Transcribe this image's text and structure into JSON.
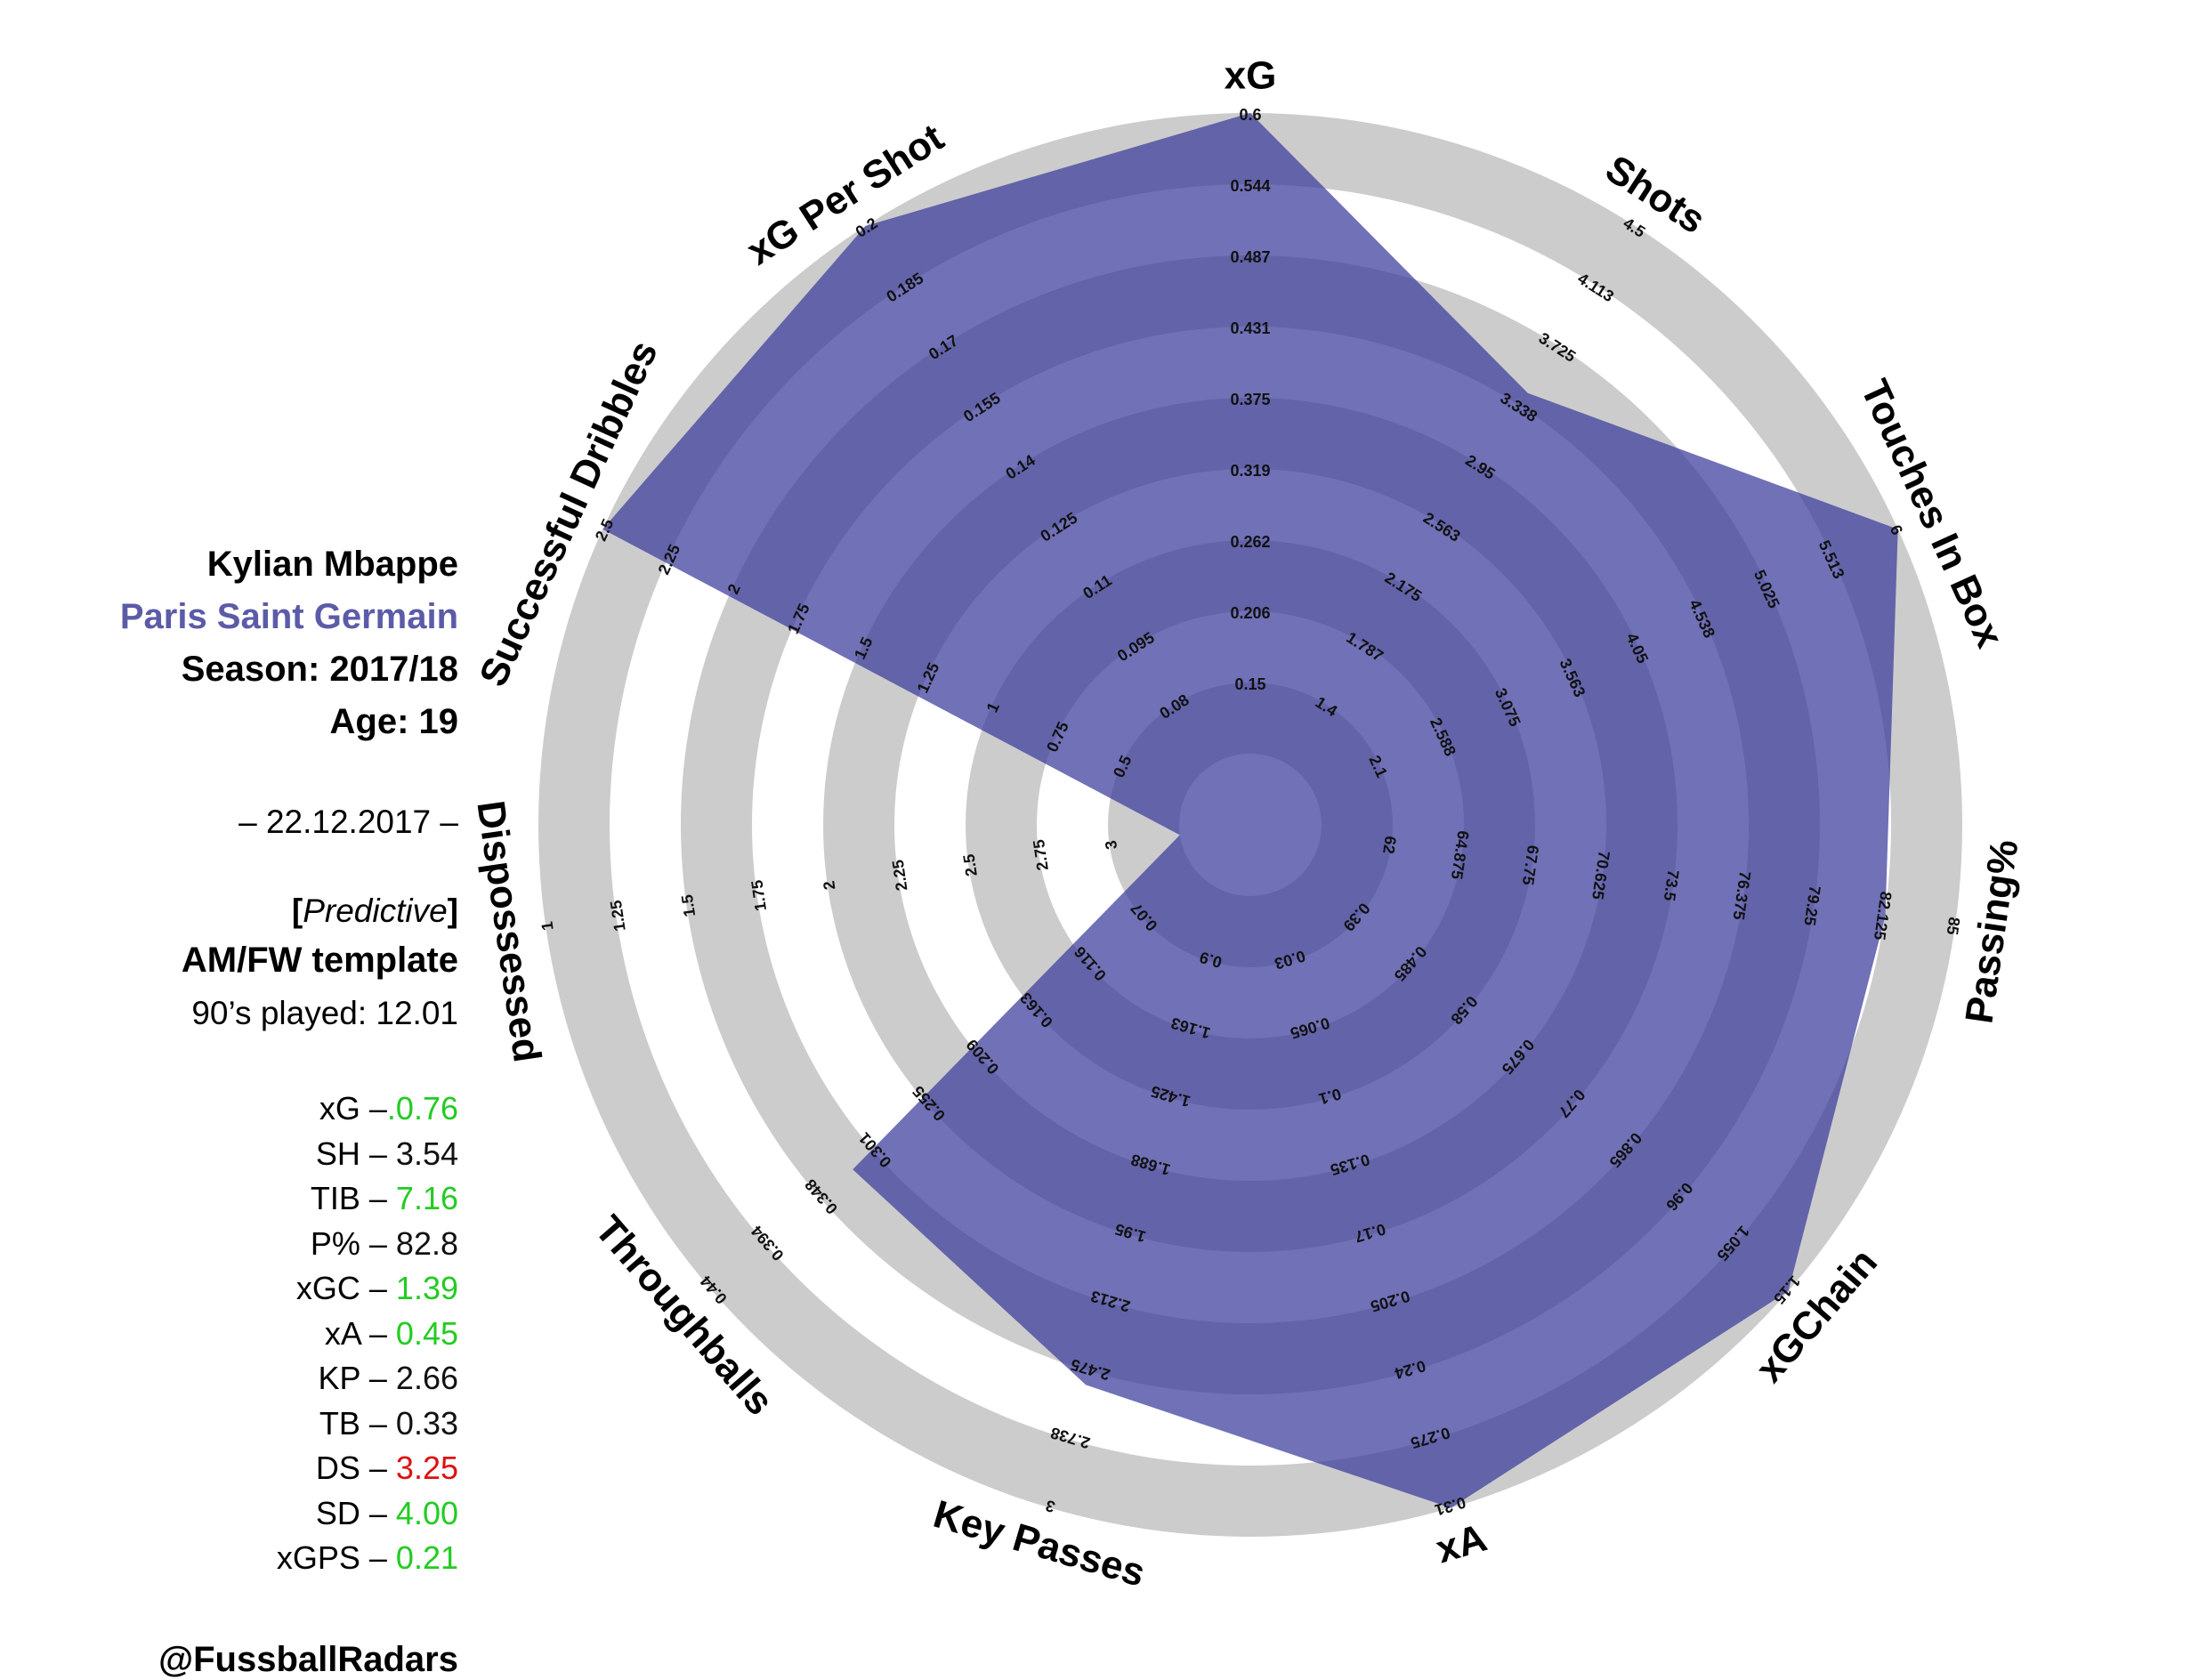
{
  "player": {
    "name": "Kylian Mbappe",
    "club": "Paris Saint Germain",
    "season": "Season: 2017/18",
    "age": "Age: 19",
    "date": "– 22.12.2017 –",
    "model_open": "[",
    "model": "Predictive",
    "model_close": "]",
    "template": "AM/FW template",
    "nineties": "90’s played: 12.01",
    "handle": "@FussballRadars"
  },
  "colors": {
    "club": "#5b5ba8",
    "good": "#22cc22",
    "bad": "#dd1111",
    "neutral": "#111111",
    "ring_light": "#ffffff",
    "ring_dark": "#cccccc",
    "polygon": "#3a3a9c"
  },
  "stats": [
    {
      "key": "xG –",
      "value": ".0.76",
      "tone": "good"
    },
    {
      "key": "SH – ",
      "value": "3.54",
      "tone": "neutral"
    },
    {
      "key": "TIB – ",
      "value": "7.16",
      "tone": "good"
    },
    {
      "key": "P% – ",
      "value": "82.8",
      "tone": "neutral"
    },
    {
      "key": "xGC – ",
      "value": "1.39",
      "tone": "good"
    },
    {
      "key": "xA – ",
      "value": "0.45",
      "tone": "good"
    },
    {
      "key": "KP – ",
      "value": "2.66",
      "tone": "neutral"
    },
    {
      "key": "TB – ",
      "value": "0.33",
      "tone": "neutral"
    },
    {
      "key": "DS – ",
      "value": "3.25",
      "tone": "bad"
    },
    {
      "key": "SD – ",
      "value": "4.00",
      "tone": "good"
    },
    {
      "key": "xGPS – ",
      "value": "0.21",
      "tone": "good"
    }
  ],
  "chart_data": {
    "type": "radar",
    "axes": [
      {
        "name": "xG",
        "ticks": [
          "0.15",
          "0.206",
          "0.262",
          "0.319",
          "0.375",
          "0.431",
          "0.487",
          "0.544",
          "0.6"
        ],
        "value_fraction": 1.0
      },
      {
        "name": "Shots",
        "ticks": [
          "1.4",
          "1.787",
          "2.175",
          "2.563",
          "2.95",
          "3.338",
          "3.725",
          "4.113",
          "4.5"
        ],
        "value_fraction": 0.69
      },
      {
        "name": "Touches In Box",
        "ticks": [
          "2.1",
          "2.588",
          "3.075",
          "3.563",
          "4.05",
          "4.538",
          "5.025",
          "5.513",
          "6"
        ],
        "value_fraction": 1.0
      },
      {
        "name": "Passing%",
        "ticks": [
          "62",
          "64.875",
          "67.75",
          "70.625",
          "73.5",
          "76.375",
          "79.25",
          "82.125",
          "85"
        ],
        "value_fraction": 0.89
      },
      {
        "name": "xGChain",
        "ticks": [
          "0.39",
          "0.485",
          "0.58",
          "0.675",
          "0.77",
          "0.865",
          "0.96",
          "1.055",
          "1.15"
        ],
        "value_fraction": 1.0
      },
      {
        "name": "xA",
        "ticks": [
          "0.03",
          "0.065",
          "0.1",
          "0.135",
          "0.17",
          "0.205",
          "0.24",
          "0.275",
          "0.31"
        ],
        "value_fraction": 1.0
      },
      {
        "name": "Key Passes",
        "ticks": [
          "0.9",
          "1.163",
          "1.425",
          "1.688",
          "1.95",
          "2.213",
          "2.475",
          "2.738",
          "3"
        ],
        "value_fraction": 0.8
      },
      {
        "name": "Throughballs",
        "ticks": [
          "0.07",
          "0.116",
          "0.163",
          "0.209",
          "0.255",
          "0.301",
          "0.348",
          "0.394",
          "0.44"
        ],
        "value_fraction": 0.71
      },
      {
        "name": "Dispossessed",
        "ticks": [
          "3",
          "2.75",
          "2.5",
          "2.25",
          "2",
          "1.75",
          "1.5",
          "1.25",
          "1"
        ],
        "value_fraction": 0.0
      },
      {
        "name": "Successful Dribbles",
        "ticks": [
          "0.5",
          "0.75",
          "1",
          "1.25",
          "1.5",
          "1.75",
          "2",
          "2.25",
          "2.5"
        ],
        "value_fraction": 1.0
      },
      {
        "name": "xG Per Shot",
        "ticks": [
          "0.08",
          "0.095",
          "0.11",
          "0.125",
          "0.14",
          "0.155",
          "0.17",
          "0.185",
          "0.2"
        ],
        "value_fraction": 1.0
      }
    ]
  }
}
